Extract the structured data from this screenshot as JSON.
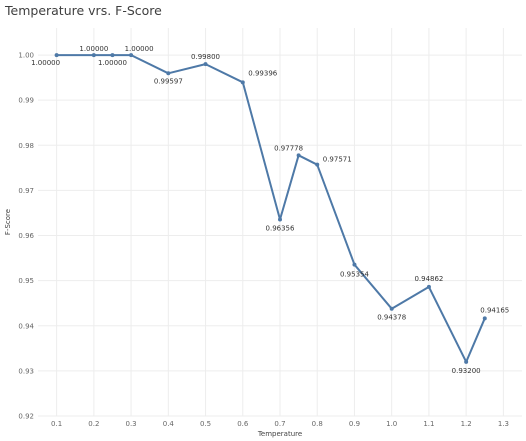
{
  "chart_data": {
    "type": "line",
    "title": "Temperature vrs. F-Score",
    "xlabel": "Temperature",
    "ylabel": "F-Score",
    "x_ticks": [
      "0.1",
      "0.2",
      "0.3",
      "0.4",
      "0.5",
      "0.6",
      "0.7",
      "0.8",
      "0.9",
      "1.0",
      "1.1",
      "1.2",
      "1.3"
    ],
    "y_ticks": [
      "0.92",
      "0.93",
      "0.94",
      "0.95",
      "0.96",
      "0.97",
      "0.98",
      "0.99",
      "1.00"
    ],
    "xlim": [
      0.05,
      1.35
    ],
    "ylim": [
      0.92,
      1.006
    ],
    "grid": true,
    "line_color": "#4e79a7",
    "points": [
      {
        "x": 0.1,
        "y": 1.0,
        "label": "1.00000"
      },
      {
        "x": 0.2,
        "y": 1.0,
        "label": "1.00000"
      },
      {
        "x": 0.25,
        "y": 1.0,
        "label": "1.00000"
      },
      {
        "x": 0.3,
        "y": 1.0,
        "label": "1.00000"
      },
      {
        "x": 0.4,
        "y": 0.99597,
        "label": "0.99597"
      },
      {
        "x": 0.5,
        "y": 0.998,
        "label": "0.99800"
      },
      {
        "x": 0.6,
        "y": 0.99396,
        "label": "0.99396"
      },
      {
        "x": 0.7,
        "y": 0.96356,
        "label": "0.96356"
      },
      {
        "x": 0.75,
        "y": 0.97778,
        "label": "0.97778"
      },
      {
        "x": 0.8,
        "y": 0.97571,
        "label": "0.97571"
      },
      {
        "x": 0.9,
        "y": 0.95354,
        "label": "0.95354"
      },
      {
        "x": 1.0,
        "y": 0.94378,
        "label": "0.94378"
      },
      {
        "x": 1.1,
        "y": 0.94862,
        "label": "0.94862"
      },
      {
        "x": 1.2,
        "y": 0.932,
        "label": "0.93200"
      },
      {
        "x": 1.25,
        "y": 0.94165,
        "label": "0.94165"
      }
    ]
  }
}
